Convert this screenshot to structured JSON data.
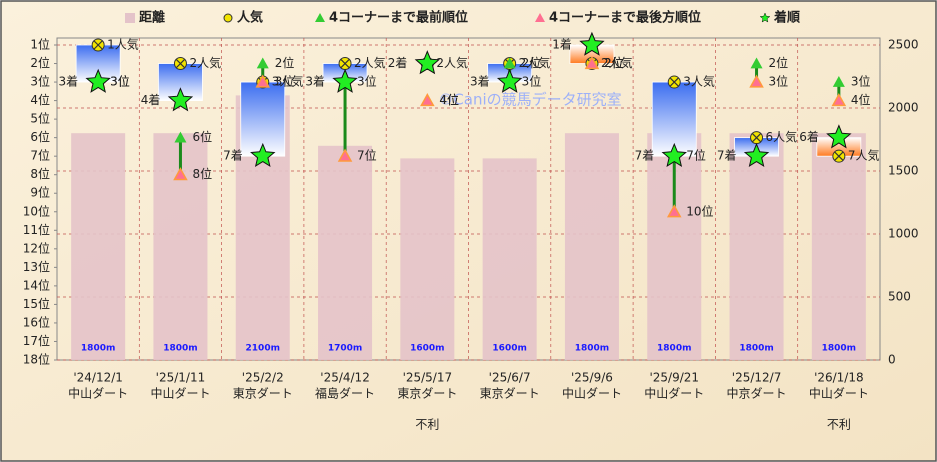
{
  "chart_data": {
    "type": "combo",
    "categories": [
      [
        "'24/12/1",
        "中山ダート"
      ],
      [
        "'25/1/11",
        "中山ダート"
      ],
      [
        "'25/2/2",
        "東京ダート"
      ],
      [
        "'25/4/12",
        "福島ダート"
      ],
      [
        "'25/5/17",
        "東京ダート"
      ],
      [
        "'25/6/7",
        "東京ダート"
      ],
      [
        "'25/9/6",
        "中山ダート"
      ],
      [
        "'25/9/21",
        "中山ダート"
      ],
      [
        "'25/12/7",
        "中京ダート"
      ],
      [
        "'26/1/18",
        "中山ダート"
      ]
    ],
    "annotations": [
      null,
      null,
      null,
      null,
      "不利",
      null,
      null,
      null,
      null,
      "不利"
    ],
    "watermark": "©Caniの競馬データ研究室",
    "ylim": [
      1,
      18
    ],
    "y_inverted": true,
    "yticks": [
      {
        "value": 1,
        "label": "1位"
      },
      {
        "value": 2,
        "label": "2位"
      },
      {
        "value": 3,
        "label": "3位"
      },
      {
        "value": 4,
        "label": "4位"
      },
      {
        "value": 5,
        "label": "5位"
      },
      {
        "value": 6,
        "label": "6位"
      },
      {
        "value": 7,
        "label": "7位"
      },
      {
        "value": 8,
        "label": "8位"
      },
      {
        "value": 9,
        "label": "9位"
      },
      {
        "value": 10,
        "label": "10位"
      },
      {
        "value": 11,
        "label": "11位"
      },
      {
        "value": 12,
        "label": "12位"
      },
      {
        "value": 13,
        "label": "13位"
      },
      {
        "value": 14,
        "label": "14位"
      },
      {
        "value": 15,
        "label": "15位"
      },
      {
        "value": 16,
        "label": "16位"
      },
      {
        "value": 17,
        "label": "17位"
      },
      {
        "value": 18,
        "label": "18位"
      }
    ],
    "y2lim": [
      0,
      2500
    ],
    "y2ticks": [
      0,
      500,
      1000,
      1500,
      2000,
      2500
    ],
    "series": [
      {
        "name": "距離",
        "marker": "bar",
        "axis": "y2",
        "color": "#e4c3c9",
        "values": [
          1800,
          1800,
          2100,
          1700,
          1600,
          1600,
          1800,
          1800,
          1800,
          1800
        ],
        "value_labels": [
          "1800m",
          "1800m",
          "2100m",
          "1700m",
          "1600m",
          "1600m",
          "1800m",
          "1800m",
          "1800m",
          "1800m"
        ]
      },
      {
        "name": "人気",
        "marker": "cross-circle",
        "color": "#f2e400",
        "values": [
          1,
          2,
          3,
          2,
          2,
          2,
          2,
          3,
          6,
          7
        ],
        "value_labels": [
          "1人気",
          "2人気",
          "3人気",
          "2人気",
          "2人気",
          "2人気",
          "2人気",
          "3人気",
          "6人気",
          "7人気"
        ]
      },
      {
        "name": "4コーナーまで最前順位",
        "marker": "triangle",
        "color": "#33cc33",
        "values": [
          3,
          6,
          2,
          3,
          4,
          2,
          2,
          7,
          2,
          3
        ],
        "value_labels": [
          "3位",
          "6位",
          "2位",
          "3位",
          "4位",
          "2位",
          "2位",
          "7位",
          "2位",
          "3位"
        ]
      },
      {
        "name": "4コーナーまで最後方順位",
        "marker": "triangle",
        "color": "#ff6f91",
        "values": [
          3,
          8,
          3,
          7,
          4,
          3,
          2,
          10,
          3,
          4
        ],
        "value_labels": [
          "3位",
          "8位",
          "3位",
          "7位",
          "4位",
          "3位",
          "2位",
          "10位",
          "3位",
          "4位"
        ]
      },
      {
        "name": "着順",
        "marker": "star",
        "color": "#22ee22",
        "values": [
          3,
          4,
          7,
          3,
          2,
          3,
          1,
          7,
          7,
          6
        ],
        "value_labels": [
          "3着",
          "4着",
          "7着",
          "3着",
          "2着",
          "3着",
          "1着",
          "7着",
          "7着",
          "6着"
        ]
      }
    ]
  }
}
